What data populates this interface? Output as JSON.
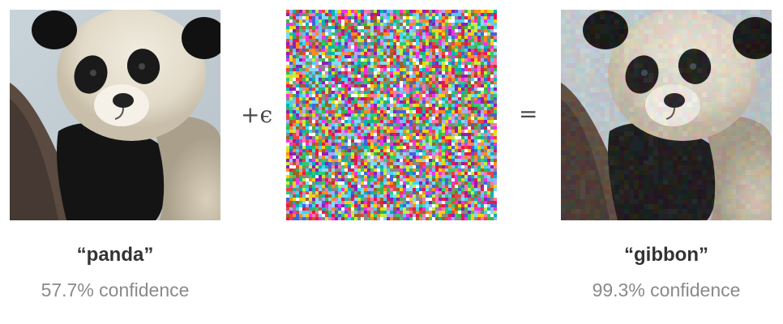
{
  "operators": {
    "plus": "+ϵ",
    "equals": "="
  },
  "original": {
    "image": "panda-photo",
    "label": "“panda”",
    "confidence": "57.7% confidence"
  },
  "perturbation": {
    "image": "random-noise-pattern"
  },
  "adversarial": {
    "image": "panda-photo-perturbed",
    "label": "“gibbon”",
    "confidence": "99.3% confidence"
  },
  "colors": {
    "label_text": "#333333",
    "confidence_text": "#8a8a8a",
    "operator_text": "#4a4a4a"
  }
}
